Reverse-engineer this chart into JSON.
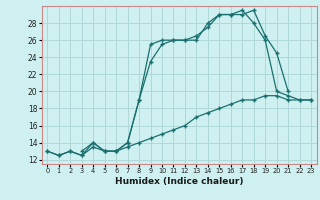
{
  "xlabel": "Humidex (Indice chaleur)",
  "background_color": "#cff0f0",
  "grid_color": "#b0d8d8",
  "line_color": "#1a7070",
  "spine_color": "#cc8888",
  "xlim": [
    -0.5,
    23.5
  ],
  "ylim": [
    11.5,
    30
  ],
  "yticks": [
    12,
    14,
    16,
    18,
    20,
    22,
    24,
    26,
    28
  ],
  "xticks": [
    0,
    1,
    2,
    3,
    4,
    5,
    6,
    7,
    8,
    9,
    10,
    11,
    12,
    13,
    14,
    15,
    16,
    17,
    18,
    19,
    20,
    21,
    22,
    23
  ],
  "line1_x": [
    0,
    1,
    2,
    3,
    4,
    5,
    6,
    7,
    8,
    9,
    10,
    11,
    12,
    13,
    14,
    15,
    16,
    17,
    18,
    19,
    20,
    21,
    22,
    23
  ],
  "line1_y": [
    13,
    12.5,
    13,
    12.5,
    13.5,
    13,
    13,
    13.5,
    14,
    14.5,
    15,
    15.5,
    16,
    17,
    17.5,
    18,
    18.5,
    19,
    19,
    19.5,
    19.5,
    19,
    19,
    19
  ],
  "line2_x": [
    0,
    1,
    2,
    3,
    4,
    5,
    6,
    7,
    8,
    9,
    10,
    11,
    12,
    13,
    14,
    15,
    16,
    17,
    18,
    19,
    20,
    21,
    22,
    23
  ],
  "line2_y": [
    13,
    12.5,
    13,
    12.5,
    14,
    13,
    13,
    14,
    19,
    25.5,
    26,
    26,
    26,
    26.5,
    27.5,
    29,
    29,
    29.5,
    28,
    26,
    20,
    19.5,
    19,
    19
  ],
  "line3_x": [
    3,
    4,
    5,
    6,
    7,
    8,
    9,
    10,
    11,
    12,
    13,
    14,
    15,
    16,
    17,
    18,
    19,
    20,
    21
  ],
  "line3_y": [
    13,
    14,
    13,
    13,
    14,
    19,
    23.5,
    25.5,
    26,
    26,
    26,
    28,
    29,
    29,
    29,
    29.5,
    26.5,
    24.5,
    20
  ]
}
